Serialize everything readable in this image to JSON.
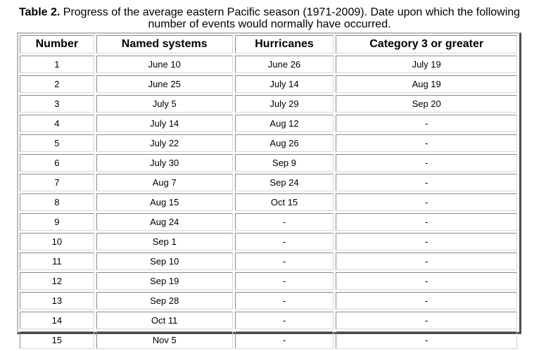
{
  "caption": {
    "label": "Table 2.",
    "text": " Progress of the average eastern Pacific season (1971-2009). Date upon which the following number of events would normally have occurred."
  },
  "table": {
    "headers": [
      "Number",
      "Named systems",
      "Hurricanes",
      "Category 3 or greater"
    ],
    "rows": [
      [
        "1",
        "June 10",
        "June 26",
        "July 19"
      ],
      [
        "2",
        "June 25",
        "July 14",
        "Aug 19"
      ],
      [
        "3",
        "July 5",
        "July 29",
        "Sep 20"
      ],
      [
        "4",
        "July 14",
        "Aug 12",
        "-"
      ],
      [
        "5",
        "July 22",
        "Aug 26",
        "-"
      ],
      [
        "6",
        "July 30",
        "Sep 9",
        "-"
      ],
      [
        "7",
        "Aug 7",
        "Sep 24",
        "-"
      ],
      [
        "8",
        "Aug 15",
        "Oct 15",
        "-"
      ],
      [
        "9",
        "Aug 24",
        "-",
        "-"
      ],
      [
        "10",
        "Sep 1",
        "-",
        "-"
      ],
      [
        "11",
        "Sep 10",
        "-",
        "-"
      ],
      [
        "12",
        "Sep 19",
        "-",
        "-"
      ],
      [
        "13",
        "Sep 28",
        "-",
        "-"
      ],
      [
        "14",
        "Oct 11",
        "-",
        "-"
      ],
      [
        "15",
        "Nov 5",
        "-",
        "-"
      ]
    ]
  }
}
